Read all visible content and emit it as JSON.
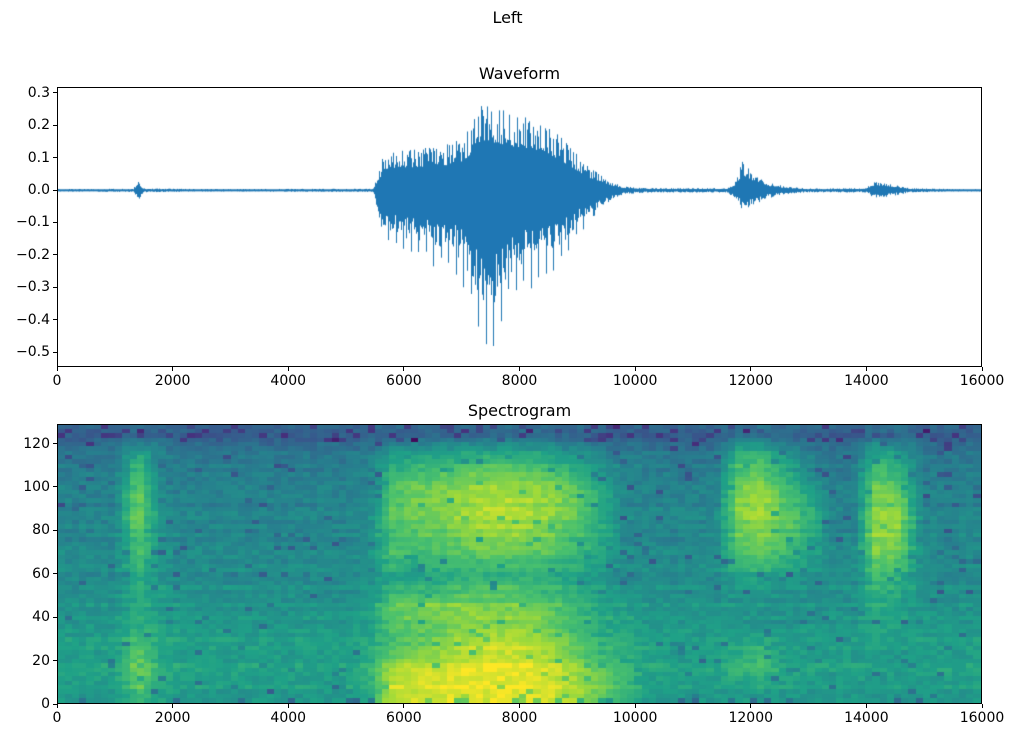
{
  "figure": {
    "suptitle": "Left",
    "background_color": "#ffffff",
    "text_color": "#000000",
    "waveform_line_color": "#1f77b4"
  },
  "chart_data": [
    {
      "type": "line",
      "title": "Waveform",
      "xlabel": "",
      "ylabel": "",
      "xlim": [
        0,
        16000
      ],
      "ylim": [
        -0.546,
        0.318
      ],
      "x_ticks": [
        0,
        2000,
        4000,
        6000,
        8000,
        10000,
        12000,
        14000,
        16000
      ],
      "x_tick_labels": [
        "0",
        "2000",
        "4000",
        "6000",
        "8000",
        "10000",
        "12000",
        "14000",
        "16000"
      ],
      "y_ticks": [
        0.3,
        0.2,
        0.1,
        0.0,
        -0.1,
        -0.2,
        -0.3,
        -0.4,
        -0.5
      ],
      "y_tick_labels": [
        "0.3",
        "0.2",
        "0.1",
        "0.0",
        "−0.1",
        "−0.2",
        "−0.3",
        "−0.4",
        "−0.5"
      ],
      "series_color": "#1f77b4",
      "description": "Audio waveform: near-silence with a tiny click at ~1400, a loud voiced burst from ~5550 to ~9700 (peaks +0.27 / −0.52 around t=7400-7600), a small burst at ~11850 (+0.09/−0.07), and a faint burst at ~14150-14600 (~±0.027)",
      "pitch_period_samples": 130,
      "envelope_t_pos_neg": [
        [
          0,
          0.004,
          0.004
        ],
        [
          1300,
          0.005,
          0.005
        ],
        [
          1380,
          0.03,
          0.032
        ],
        [
          1430,
          0.018,
          0.02
        ],
        [
          1480,
          0.006,
          0.006
        ],
        [
          2500,
          0.004,
          0.004
        ],
        [
          5450,
          0.005,
          0.005
        ],
        [
          5560,
          0.06,
          0.08
        ],
        [
          5650,
          0.12,
          0.17
        ],
        [
          5900,
          0.13,
          0.2
        ],
        [
          6300,
          0.13,
          0.23
        ],
        [
          6700,
          0.14,
          0.26
        ],
        [
          7000,
          0.16,
          0.3
        ],
        [
          7200,
          0.22,
          0.42
        ],
        [
          7350,
          0.27,
          0.52
        ],
        [
          7600,
          0.27,
          0.5
        ],
        [
          7800,
          0.25,
          0.38
        ],
        [
          8100,
          0.24,
          0.32
        ],
        [
          8400,
          0.22,
          0.3
        ],
        [
          8700,
          0.17,
          0.24
        ],
        [
          9000,
          0.11,
          0.16
        ],
        [
          9200,
          0.07,
          0.1
        ],
        [
          9400,
          0.05,
          0.06
        ],
        [
          9600,
          0.025,
          0.03
        ],
        [
          9800,
          0.012,
          0.012
        ],
        [
          10200,
          0.007,
          0.007
        ],
        [
          11600,
          0.007,
          0.007
        ],
        [
          11750,
          0.03,
          0.03
        ],
        [
          11850,
          0.09,
          0.065
        ],
        [
          11950,
          0.07,
          0.06
        ],
        [
          12100,
          0.045,
          0.045
        ],
        [
          12300,
          0.025,
          0.025
        ],
        [
          12600,
          0.012,
          0.012
        ],
        [
          13000,
          0.006,
          0.006
        ],
        [
          14000,
          0.007,
          0.007
        ],
        [
          14150,
          0.028,
          0.026
        ],
        [
          14350,
          0.024,
          0.022
        ],
        [
          14550,
          0.015,
          0.014
        ],
        [
          14750,
          0.007,
          0.007
        ],
        [
          15500,
          0.004,
          0.004
        ],
        [
          16000,
          0.004,
          0.004
        ]
      ]
    },
    {
      "type": "heatmap",
      "title": "Spectrogram",
      "xlabel": "",
      "ylabel": "",
      "xlim": [
        0,
        16000
      ],
      "ylim": [
        0,
        129
      ],
      "x_ticks": [
        0,
        2000,
        4000,
        6000,
        8000,
        10000,
        12000,
        14000,
        16000
      ],
      "x_tick_labels": [
        "0",
        "2000",
        "4000",
        "6000",
        "8000",
        "10000",
        "12000",
        "14000",
        "16000"
      ],
      "y_ticks": [
        0,
        20,
        40,
        60,
        80,
        100,
        120
      ],
      "y_tick_labels": [
        "0",
        "20",
        "40",
        "60",
        "80",
        "100",
        "120"
      ],
      "colormap": "viridis",
      "colormap_stops": [
        [
          0.0,
          "#440154"
        ],
        [
          0.14,
          "#46327e"
        ],
        [
          0.29,
          "#365c8d"
        ],
        [
          0.43,
          "#277f8e"
        ],
        [
          0.57,
          "#1fa187"
        ],
        [
          0.71,
          "#4ac16d"
        ],
        [
          0.86,
          "#a0da39"
        ],
        [
          1.0,
          "#fde725"
        ]
      ],
      "grid_cols": 40,
      "grid_rows_top_to_bottom": 16,
      "description": "Intensity 0-100 per column (each column = 400 samples, 16 freq bands top=128 to bottom=0). Bright vertical band at ~1400, strong broadband energy 5600-9700 (brightest at low freq), band at 11700-12800 strong at 60-115, band at 14000-14800 strong at 40-120",
      "intensity_columns_top_to_bottom": [
        [
          30,
          38,
          42,
          43,
          44,
          45,
          46,
          47,
          48,
          50,
          52,
          53,
          56,
          57,
          56,
          55
        ],
        [
          30,
          38,
          42,
          43,
          44,
          45,
          46,
          47,
          48,
          50,
          52,
          53,
          56,
          57,
          56,
          55
        ],
        [
          30,
          38,
          42,
          43,
          44,
          45,
          46,
          47,
          48,
          50,
          52,
          53,
          56,
          57,
          56,
          55
        ],
        [
          35,
          55,
          68,
          75,
          80,
          78,
          72,
          70,
          65,
          62,
          60,
          62,
          70,
          78,
          80,
          70
        ],
        [
          34,
          42,
          46,
          47,
          48,
          49,
          50,
          51,
          52,
          54,
          56,
          57,
          60,
          61,
          60,
          59
        ],
        [
          30,
          38,
          42,
          43,
          44,
          45,
          46,
          47,
          48,
          50,
          52,
          53,
          56,
          57,
          56,
          55
        ],
        [
          30,
          38,
          42,
          43,
          44,
          45,
          46,
          47,
          48,
          50,
          52,
          53,
          56,
          57,
          56,
          55
        ],
        [
          30,
          38,
          42,
          43,
          44,
          45,
          46,
          47,
          48,
          50,
          52,
          53,
          56,
          57,
          56,
          55
        ],
        [
          30,
          38,
          42,
          43,
          44,
          45,
          46,
          47,
          48,
          50,
          52,
          53,
          56,
          57,
          56,
          55
        ],
        [
          30,
          38,
          42,
          43,
          44,
          45,
          46,
          47,
          48,
          50,
          52,
          53,
          56,
          57,
          56,
          55
        ],
        [
          30,
          38,
          42,
          43,
          44,
          45,
          46,
          47,
          48,
          50,
          52,
          53,
          56,
          57,
          56,
          55
        ],
        [
          30,
          38,
          42,
          43,
          44,
          45,
          46,
          47,
          48,
          50,
          52,
          53,
          56,
          57,
          56,
          55
        ],
        [
          30,
          38,
          42,
          43,
          44,
          45,
          46,
          47,
          48,
          50,
          52,
          53,
          56,
          57,
          56,
          55
        ],
        [
          31,
          40,
          44,
          46,
          47,
          48,
          49,
          50,
          51,
          53,
          56,
          57,
          60,
          62,
          62,
          62
        ],
        [
          32,
          50,
          62,
          68,
          72,
          72,
          70,
          68,
          60,
          62,
          75,
          72,
          68,
          80,
          88,
          92
        ],
        [
          32,
          52,
          66,
          74,
          78,
          76,
          72,
          66,
          58,
          64,
          80,
          75,
          72,
          85,
          92,
          95
        ],
        [
          33,
          52,
          68,
          76,
          80,
          78,
          74,
          68,
          60,
          66,
          82,
          76,
          78,
          88,
          94,
          96
        ],
        [
          33,
          54,
          70,
          80,
          84,
          82,
          78,
          70,
          62,
          68,
          84,
          80,
          85,
          92,
          95,
          97
        ],
        [
          34,
          56,
          74,
          84,
          88,
          86,
          82,
          74,
          64,
          70,
          80,
          82,
          90,
          95,
          97,
          98
        ],
        [
          34,
          56,
          74,
          84,
          88,
          86,
          82,
          74,
          64,
          70,
          80,
          82,
          90,
          95,
          97,
          98
        ],
        [
          34,
          55,
          72,
          82,
          86,
          85,
          80,
          72,
          63,
          68,
          78,
          80,
          88,
          93,
          96,
          97
        ],
        [
          33,
          52,
          68,
          78,
          82,
          80,
          76,
          70,
          60,
          65,
          74,
          75,
          82,
          88,
          92,
          94
        ],
        [
          32,
          48,
          60,
          70,
          74,
          72,
          68,
          64,
          57,
          60,
          68,
          68,
          74,
          80,
          85,
          88
        ],
        [
          31,
          44,
          52,
          58,
          62,
          62,
          60,
          58,
          54,
          56,
          60,
          60,
          64,
          70,
          76,
          80
        ],
        [
          30,
          40,
          45,
          46,
          47,
          48,
          48,
          49,
          50,
          52,
          56,
          58,
          62,
          66,
          66,
          68
        ],
        [
          30,
          39,
          43,
          44,
          45,
          46,
          47,
          48,
          49,
          51,
          53,
          54,
          58,
          60,
          58,
          57
        ],
        [
          30,
          38,
          42,
          43,
          44,
          45,
          46,
          47,
          48,
          50,
          52,
          53,
          56,
          57,
          56,
          55
        ],
        [
          30,
          38,
          42,
          43,
          44,
          45,
          46,
          47,
          48,
          50,
          52,
          53,
          56,
          57,
          56,
          55
        ],
        [
          30,
          38,
          42,
          43,
          44,
          45,
          46,
          47,
          48,
          50,
          52,
          53,
          56,
          57,
          56,
          55
        ],
        [
          34,
          58,
          70,
          76,
          80,
          78,
          74,
          68,
          60,
          54,
          52,
          52,
          58,
          66,
          62,
          56
        ],
        [
          35,
          60,
          74,
          82,
          86,
          84,
          80,
          72,
          62,
          55,
          52,
          52,
          60,
          70,
          64,
          56
        ],
        [
          33,
          50,
          60,
          66,
          72,
          74,
          72,
          64,
          56,
          52,
          51,
          51,
          55,
          58,
          57,
          55
        ],
        [
          31,
          42,
          48,
          54,
          62,
          66,
          64,
          58,
          52,
          50,
          52,
          53,
          56,
          57,
          56,
          55
        ],
        [
          30,
          38,
          42,
          43,
          44,
          45,
          46,
          47,
          48,
          50,
          52,
          53,
          56,
          57,
          56,
          55
        ],
        [
          30,
          38,
          42,
          43,
          44,
          45,
          46,
          47,
          48,
          50,
          52,
          53,
          56,
          57,
          56,
          55
        ],
        [
          34,
          55,
          68,
          76,
          82,
          85,
          84,
          78,
          70,
          64,
          62,
          58,
          56,
          56,
          55,
          54
        ],
        [
          34,
          52,
          64,
          72,
          78,
          82,
          80,
          74,
          66,
          60,
          58,
          56,
          55,
          55,
          54,
          53
        ],
        [
          30,
          38,
          42,
          43,
          44,
          45,
          46,
          47,
          48,
          50,
          52,
          53,
          56,
          57,
          56,
          55
        ],
        [
          30,
          38,
          42,
          43,
          44,
          45,
          46,
          47,
          48,
          50,
          52,
          53,
          56,
          57,
          56,
          55
        ],
        [
          30,
          38,
          42,
          43,
          44,
          45,
          46,
          47,
          48,
          50,
          52,
          53,
          56,
          57,
          56,
          55
        ]
      ]
    }
  ]
}
